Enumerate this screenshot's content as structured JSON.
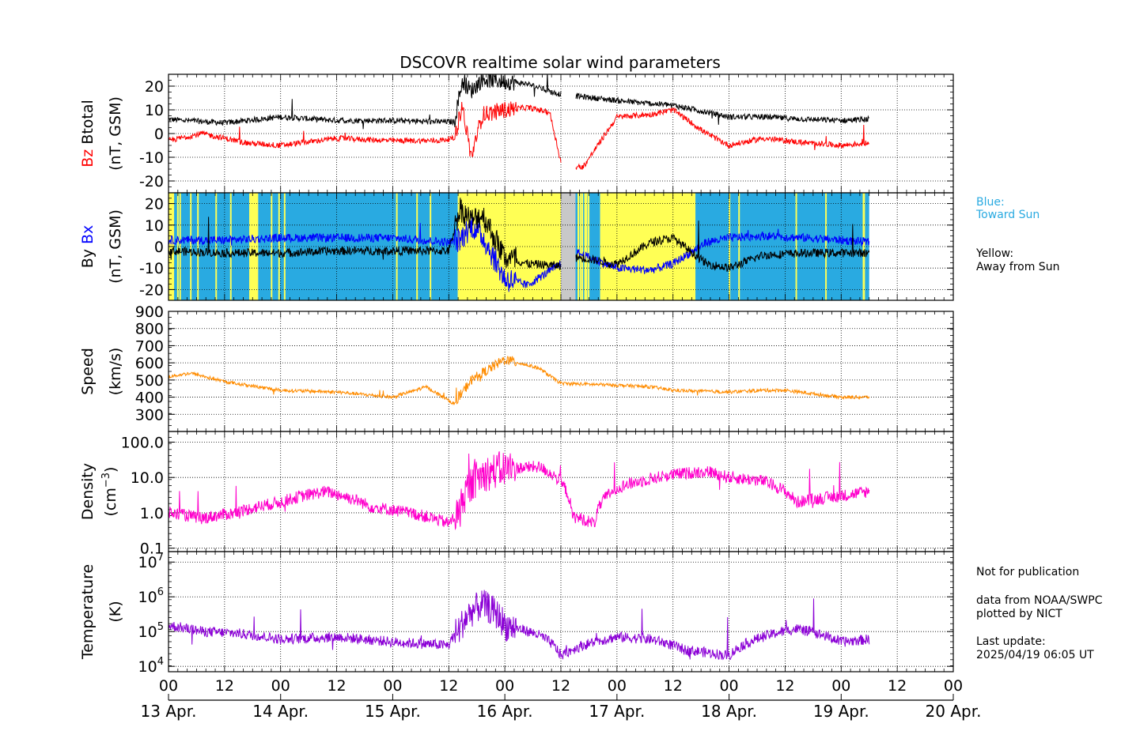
{
  "title": "DSCOVR realtime solar wind parameters",
  "colors": {
    "bz": "#ff0000",
    "btotal": "#000000",
    "bx": "#0000ff",
    "by": "#000000",
    "speed": "#ff8c00",
    "density": "#ff00cc",
    "temperature": "#8b00d6",
    "toward": "#29aae1",
    "away": "#ffff55",
    "gap": "#c8c8c8"
  },
  "legend": {
    "toward_title": "Blue:",
    "toward_text": "Toward Sun",
    "away_title": "Yellow:",
    "away_text": "Away from Sun"
  },
  "notes": {
    "line1": "Not for publication",
    "line2": "data from NOAA/SWPC",
    "line3": "plotted by NICT",
    "line4": "Last update:",
    "line5": "2025/04/19 06:05 UT"
  },
  "chart_data": [
    {
      "type": "line",
      "panel": "magnetic field (Bz, Btotal)",
      "ylabel_parts": [
        "Bz",
        "Btotal",
        "(nT, GSM)"
      ],
      "ylim": [
        -25,
        25
      ],
      "yticks": [
        -20,
        -10,
        0,
        10,
        20
      ],
      "grid": true,
      "x_unit": "day of April 2025 (UT)",
      "series": [
        {
          "name": "Btotal",
          "color": "#000000",
          "x": [
            13.0,
            13.5,
            14.0,
            14.5,
            15.0,
            15.4,
            15.55,
            15.62,
            15.7,
            15.8,
            16.0,
            16.2,
            16.45,
            16.6,
            17.0,
            17.2,
            17.5,
            17.8,
            18.0,
            18.3,
            18.7,
            19.0,
            19.25
          ],
          "y": [
            6,
            4.5,
            7,
            5.5,
            5.5,
            5,
            5,
            22,
            18,
            23,
            22,
            21,
            17,
            16,
            14,
            13,
            12,
            9,
            7,
            7,
            6,
            5.5,
            6
          ]
        },
        {
          "name": "Bz",
          "color": "#ff0000",
          "x": [
            13.0,
            13.3,
            13.7,
            14.0,
            14.5,
            15.0,
            15.4,
            15.55,
            15.62,
            15.7,
            15.8,
            16.0,
            16.2,
            16.4,
            16.5,
            16.6,
            16.7,
            17.0,
            17.3,
            17.5,
            17.8,
            18.0,
            18.3,
            18.7,
            19.0,
            19.25
          ],
          "y": [
            -3,
            0,
            -4,
            -5,
            -2,
            -3,
            -3,
            -2,
            12,
            -10,
            8,
            10,
            11,
            9,
            -12,
            -15,
            -14,
            7,
            8,
            10,
            0,
            -5,
            -2,
            -4,
            -5,
            -4
          ]
        }
      ]
    },
    {
      "type": "line",
      "panel": "magnetic field (By, Bx) with sector polarity",
      "ylabel_parts": [
        "By",
        "Bx",
        "(nT, GSM)"
      ],
      "ylim": [
        -25,
        25
      ],
      "yticks": [
        -20,
        -10,
        0,
        10,
        20
      ],
      "grid": true,
      "sector_bands": [
        {
          "from": 13.0,
          "to": 13.05,
          "polarity": "away"
        },
        {
          "from": 13.05,
          "to": 13.72,
          "polarity": "toward"
        },
        {
          "from": 13.72,
          "to": 13.8,
          "polarity": "away"
        },
        {
          "from": 13.8,
          "to": 15.58,
          "polarity": "toward"
        },
        {
          "from": 15.58,
          "to": 16.5,
          "polarity": "away"
        },
        {
          "from": 16.5,
          "to": 16.63,
          "polarity": "no data"
        },
        {
          "from": 16.63,
          "to": 16.85,
          "polarity": "toward"
        },
        {
          "from": 16.85,
          "to": 17.7,
          "polarity": "away"
        },
        {
          "from": 17.7,
          "to": 19.25,
          "polarity": "toward"
        }
      ],
      "series": [
        {
          "name": "Bx",
          "color": "#0000ff",
          "x": [
            13.0,
            13.5,
            14.0,
            14.5,
            15.0,
            15.5,
            15.6,
            15.7,
            15.8,
            16.0,
            16.2,
            16.5,
            16.65,
            17.0,
            17.3,
            17.5,
            17.8,
            18.0,
            18.3,
            18.7,
            19.0,
            19.25
          ],
          "y": [
            3,
            3,
            4,
            4,
            4,
            2,
            3,
            10,
            5,
            -15,
            -18,
            -8,
            -3,
            -10,
            -11,
            -8,
            2,
            4,
            5,
            4,
            3,
            2
          ]
        },
        {
          "name": "By",
          "color": "#000000",
          "x": [
            13.0,
            13.5,
            14.0,
            14.5,
            15.0,
            15.5,
            15.6,
            15.7,
            15.8,
            16.0,
            16.2,
            16.5,
            16.65,
            17.0,
            17.3,
            17.5,
            17.8,
            18.0,
            18.3,
            18.7,
            19.0,
            19.25
          ],
          "y": [
            -2,
            -3,
            -3,
            -2,
            -2,
            -2,
            18,
            12,
            15,
            -5,
            -8,
            -9,
            -5,
            -8,
            2,
            4,
            -8,
            -10,
            -4,
            -3,
            -3,
            -3
          ]
        }
      ]
    },
    {
      "type": "line",
      "panel": "speed",
      "ylabel_parts": [
        "Speed",
        "(km/s)"
      ],
      "ylim": [
        200,
        900
      ],
      "yticks": [
        300,
        400,
        500,
        600,
        700,
        800,
        900
      ],
      "grid": true,
      "series": [
        {
          "name": "Speed",
          "color": "#ff8c00",
          "x": [
            13.0,
            13.2,
            13.5,
            14.0,
            14.5,
            15.0,
            15.3,
            15.55,
            15.7,
            16.0,
            16.3,
            16.5,
            17.0,
            17.3,
            17.5,
            18.0,
            18.3,
            18.5,
            19.0,
            19.25
          ],
          "y": [
            520,
            540,
            490,
            440,
            430,
            400,
            460,
            360,
            500,
            620,
            570,
            480,
            470,
            460,
            440,
            430,
            440,
            440,
            400,
            400
          ]
        }
      ]
    },
    {
      "type": "line",
      "panel": "density",
      "ylabel_parts": [
        "Density",
        "(cm−3)"
      ],
      "yscale": "log",
      "ylim": [
        0.08,
        200
      ],
      "yticks": [
        "0.1",
        "1.0",
        "10.0",
        "100.0"
      ],
      "grid": true,
      "series": [
        {
          "name": "Density",
          "color": "#ff00cc",
          "x": [
            13.0,
            13.3,
            13.6,
            14.0,
            14.4,
            14.8,
            15.0,
            15.5,
            15.6,
            15.8,
            16.0,
            16.3,
            16.6,
            16.8,
            17.0,
            17.5,
            17.8,
            18.0,
            18.3,
            18.6,
            19.0,
            19.25
          ],
          "y": [
            1,
            0.7,
            1,
            2,
            4,
            1.5,
            1.2,
            0.5,
            1,
            12,
            18,
            20,
            0.8,
            0.5,
            5,
            12,
            15,
            10,
            8,
            2,
            3,
            4
          ]
        }
      ]
    },
    {
      "type": "line",
      "panel": "temperature",
      "ylabel_parts": [
        "Temperature",
        "(K)"
      ],
      "yscale": "log",
      "ylim": [
        7000,
        20000000
      ],
      "yticks": [
        "10^4",
        "10^5",
        "10^6",
        "10^7"
      ],
      "grid": true,
      "series": [
        {
          "name": "Temperature",
          "color": "#8b00d6",
          "x": [
            13.0,
            13.3,
            13.6,
            14.0,
            14.5,
            15.0,
            15.5,
            15.6,
            15.8,
            16.0,
            16.3,
            16.5,
            16.7,
            17.0,
            17.3,
            17.6,
            18.0,
            18.3,
            18.6,
            19.0,
            19.25
          ],
          "y": [
            150000,
            100000,
            90000,
            60000,
            70000,
            50000,
            40000,
            120000,
            600000,
            150000,
            80000,
            20000,
            40000,
            70000,
            60000,
            30000,
            20000,
            70000,
            120000,
            50000,
            60000
          ]
        }
      ]
    }
  ],
  "xaxis": {
    "hour_labels": [
      "00",
      "12",
      "00",
      "12",
      "00",
      "12",
      "00",
      "12",
      "00",
      "12",
      "00",
      "12",
      "00",
      "12",
      "00"
    ],
    "day_labels": [
      "13 Apr.",
      "14 Apr.",
      "15 Apr.",
      "16 Apr.",
      "17 Apr.",
      "18 Apr.",
      "19 Apr.",
      "20 Apr."
    ],
    "xlim": [
      13,
      20
    ]
  }
}
